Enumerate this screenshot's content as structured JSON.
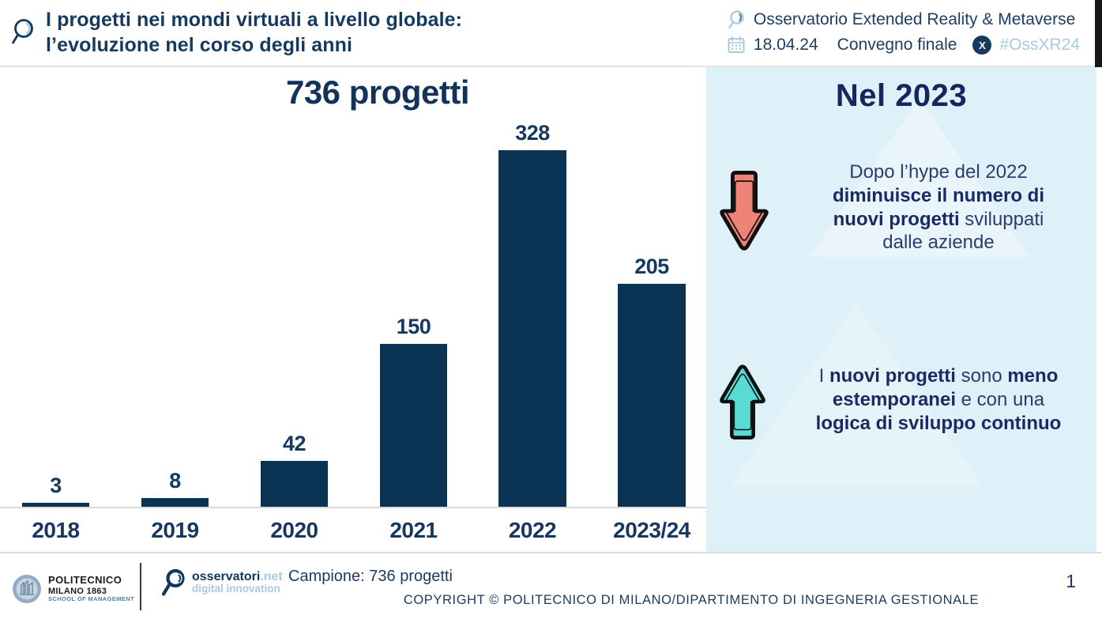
{
  "header": {
    "title_line1": "I progetti nei mondi virtuali a livello globale:",
    "title_line2": "l’evoluzione nel corso degli anni",
    "observatory": "Osservatorio Extended Reality & Metaverse",
    "date": "18.04.24",
    "event": "Convegno finale",
    "x_letter": "X",
    "hashtag": "#OssXR24"
  },
  "chart_data": {
    "type": "bar",
    "title": "736 progetti",
    "categories": [
      "2018",
      "2019",
      "2020",
      "2021",
      "2022",
      "2023/24"
    ],
    "values": [
      3,
      8,
      42,
      150,
      328,
      205
    ],
    "xlabel": "",
    "ylabel": "",
    "ylim": [
      0,
      340
    ],
    "grid": false,
    "legend": "none",
    "value_labels": true,
    "bar_color": "#0b3354"
  },
  "panel": {
    "heading": "Nel 2023",
    "bullets": [
      {
        "icon": "down-arrow",
        "icon_color": "#ef8378",
        "segments": [
          {
            "text": "Dopo l’hype del 2022",
            "bold": false,
            "break": true
          },
          {
            "text": "diminuisce il numero di",
            "bold": true,
            "break": true
          },
          {
            "text": "nuovi progetti",
            "bold": true,
            "break": false
          },
          {
            "text": " sviluppati",
            "bold": false,
            "break": true
          },
          {
            "text": "dalle aziende",
            "bold": false,
            "break": false
          }
        ]
      },
      {
        "icon": "up-arrow",
        "icon_color": "#59dbd4",
        "segments": [
          {
            "text": "I ",
            "bold": false,
            "break": false
          },
          {
            "text": "nuovi progetti",
            "bold": true,
            "break": false
          },
          {
            "text": " sono ",
            "bold": false,
            "break": false
          },
          {
            "text": "meno",
            "bold": true,
            "break": true
          },
          {
            "text": "estemporanei",
            "bold": true,
            "break": false
          },
          {
            "text": " e con una",
            "bold": false,
            "break": true
          },
          {
            "text": "logica di sviluppo continuo",
            "bold": true,
            "break": false
          }
        ]
      }
    ]
  },
  "footer": {
    "polimi_line1": "POLITECNICO",
    "polimi_line2": "MILANO 1863",
    "polimi_line3": "SCHOOL OF MANAGEMENT",
    "oss_brand_dark": "osservatori",
    "oss_brand_light": ".net",
    "oss_sub": "digital innovation",
    "sample": "Campione: 736 progetti",
    "copyright": "COPYRIGHT © POLITECNICO DI MILANO/DIPARTIMENTO DI INGEGNERIA GESTIONALE",
    "page_number": "1"
  },
  "colors": {
    "navy": "#16395e",
    "bar": "#0b3354",
    "panel_bg": "#def0f8",
    "light_blue": "#a9cbdd",
    "heading_indigo": "#15265e",
    "body_text": "#2c3c6e",
    "bold_text": "#1b2a63",
    "red_arrow": "#ef8378",
    "teal_arrow": "#59dbd4",
    "line_gray": "#dadada"
  }
}
